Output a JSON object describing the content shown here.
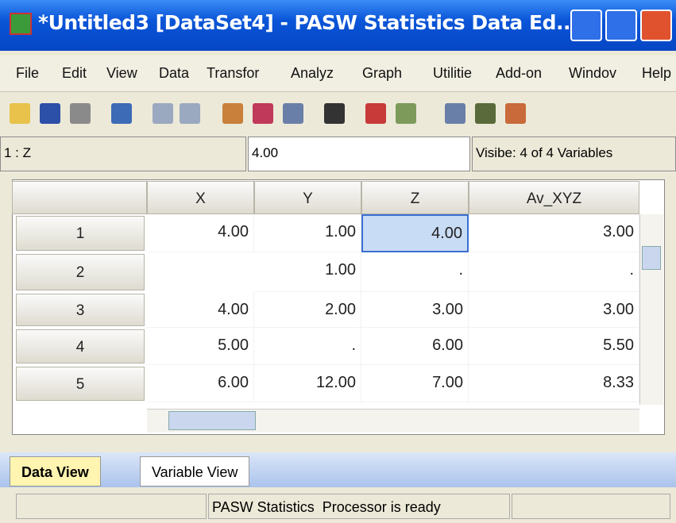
{
  "window": {
    "title": "*Untitled3 [DataSet4] - PASW Statistics Data Ed..."
  },
  "menu": [
    "File",
    "Edit",
    "View",
    "Data",
    "Transfor",
    "Analyz",
    "Graph",
    "Utilitie",
    "Add-on",
    "Windov",
    "Help"
  ],
  "cell_editor": {
    "cell": "1 : Z",
    "value": "4.00",
    "visible": "Visibe: 4 of 4 Variables"
  },
  "table": {
    "columns": [
      "X",
      "Y",
      "Z",
      "Av_XYZ"
    ],
    "row_labels": [
      "1",
      "2",
      "3",
      "4",
      "5"
    ],
    "rows": [
      [
        "4.00",
        "1.00",
        "4.00",
        "3.00"
      ],
      [
        null,
        "1.00",
        ".",
        "."
      ],
      [
        "4.00",
        "2.00",
        "3.00",
        "3.00"
      ],
      [
        "5.00",
        ".",
        "6.00",
        "5.50"
      ],
      [
        "6.00",
        "12.00",
        "7.00",
        "8.33"
      ]
    ]
  },
  "tabs": [
    "Data View",
    "Variable View"
  ],
  "status": "PASW Statistics  Processor is ready"
}
